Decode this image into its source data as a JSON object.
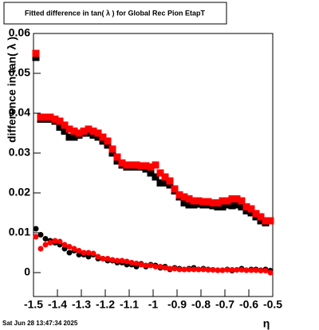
{
  "chart_data": {
    "type": "scatter",
    "title": "Fitted difference in tan( λ ) for Global Rec Pion EtapT",
    "x_label": "η",
    "y_label": "difference in tan( λ )",
    "timestamp": "Sat Jun 28 13:47:34 2025",
    "xlim": [
      -1.5,
      -0.5
    ],
    "xticks": [
      -1.5,
      -1.4,
      -1.3,
      -1.2,
      -1.1,
      -1,
      -0.9,
      -0.8,
      -0.7,
      -0.6,
      -0.5
    ],
    "ylim": [
      -0.006,
      0.06
    ],
    "yticks": [
      0,
      0.01,
      0.02,
      0.03,
      0.04,
      0.05,
      0.06
    ],
    "x": [
      -1.49,
      -1.47,
      -1.45,
      -1.43,
      -1.41,
      -1.39,
      -1.37,
      -1.35,
      -1.33,
      -1.31,
      -1.29,
      -1.27,
      -1.25,
      -1.23,
      -1.21,
      -1.19,
      -1.17,
      -1.15,
      -1.13,
      -1.11,
      -1.09,
      -1.07,
      -1.05,
      -1.03,
      -1.01,
      -0.99,
      -0.97,
      -0.95,
      -0.93,
      -0.91,
      -0.89,
      -0.87,
      -0.85,
      -0.83,
      -0.81,
      -0.79,
      -0.77,
      -0.75,
      -0.73,
      -0.71,
      -0.69,
      -0.67,
      -0.65,
      -0.63,
      -0.61,
      -0.59,
      -0.57,
      -0.55,
      -0.53,
      -0.51
    ],
    "series": [
      {
        "color": "#000000",
        "marker": "square",
        "values": [
          0.054,
          0.0385,
          0.0385,
          0.0385,
          0.038,
          0.0365,
          0.0355,
          0.034,
          0.034,
          0.0345,
          0.035,
          0.035,
          0.0345,
          0.034,
          0.033,
          0.032,
          0.03,
          0.028,
          0.027,
          0.0265,
          0.0265,
          0.0265,
          0.0265,
          0.026,
          0.025,
          0.024,
          0.0225,
          0.0225,
          0.022,
          0.0205,
          0.019,
          0.0175,
          0.017,
          0.017,
          0.0172,
          0.017,
          0.017,
          0.0168,
          0.0165,
          0.0165,
          0.017,
          0.0168,
          0.017,
          0.0165,
          0.0155,
          0.015,
          0.014,
          0.013,
          0.0125,
          0.013
        ]
      },
      {
        "color": "#ff0000",
        "marker": "square",
        "values": [
          0.055,
          0.039,
          0.039,
          0.039,
          0.0385,
          0.038,
          0.037,
          0.036,
          0.0355,
          0.035,
          0.0355,
          0.036,
          0.0355,
          0.035,
          0.034,
          0.033,
          0.031,
          0.029,
          0.0275,
          0.027,
          0.027,
          0.027,
          0.0268,
          0.0268,
          0.0265,
          0.027,
          0.025,
          0.024,
          0.023,
          0.021,
          0.0195,
          0.019,
          0.0185,
          0.018,
          0.018,
          0.0178,
          0.0178,
          0.0175,
          0.0175,
          0.018,
          0.018,
          0.0185,
          0.0185,
          0.018,
          0.0165,
          0.016,
          0.0148,
          0.014,
          0.013,
          0.013
        ]
      },
      {
        "color": "#000000",
        "marker": "circle",
        "values": [
          0.011,
          0.0095,
          0.0085,
          0.008,
          0.0075,
          0.007,
          0.006,
          0.005,
          0.0055,
          0.0045,
          0.0045,
          0.004,
          0.0045,
          0.0035,
          0.0035,
          0.003,
          0.003,
          0.0025,
          0.0025,
          0.002,
          0.002,
          0.0015,
          0.0022,
          0.0015,
          0.002,
          0.0018,
          0.0012,
          0.0015,
          0.0008,
          0.0012,
          0.001,
          0.0008,
          0.001,
          0.0012,
          0.0008,
          0.001,
          0.0008,
          0.0007,
          0.0006,
          0.0006,
          0.0008,
          0.0005,
          0.0007,
          0.001,
          0.0006,
          0.0008,
          0.0008,
          0.0006,
          0.0008,
          0.0005
        ]
      },
      {
        "color": "#ff0000",
        "marker": "circle",
        "values": [
          0.009,
          0.006,
          0.007,
          0.0075,
          0.008,
          0.0078,
          0.007,
          0.0065,
          0.006,
          0.0055,
          0.005,
          0.005,
          0.0048,
          0.004,
          0.0035,
          0.0035,
          0.0032,
          0.003,
          0.003,
          0.0028,
          0.0025,
          0.0023,
          0.002,
          0.0018,
          0.0018,
          0.0015,
          0.0015,
          0.0012,
          0.001,
          0.001,
          0.0008,
          0.0008,
          0.0008,
          0.0008,
          0.0008,
          0.0008,
          0.0007,
          0.0007,
          0.0006,
          0.0006,
          0.0007,
          0.0007,
          0.0007,
          0.0007,
          0.0006,
          0.0006,
          0.0006,
          0.0005,
          0.0005,
          0.0
        ]
      }
    ]
  }
}
